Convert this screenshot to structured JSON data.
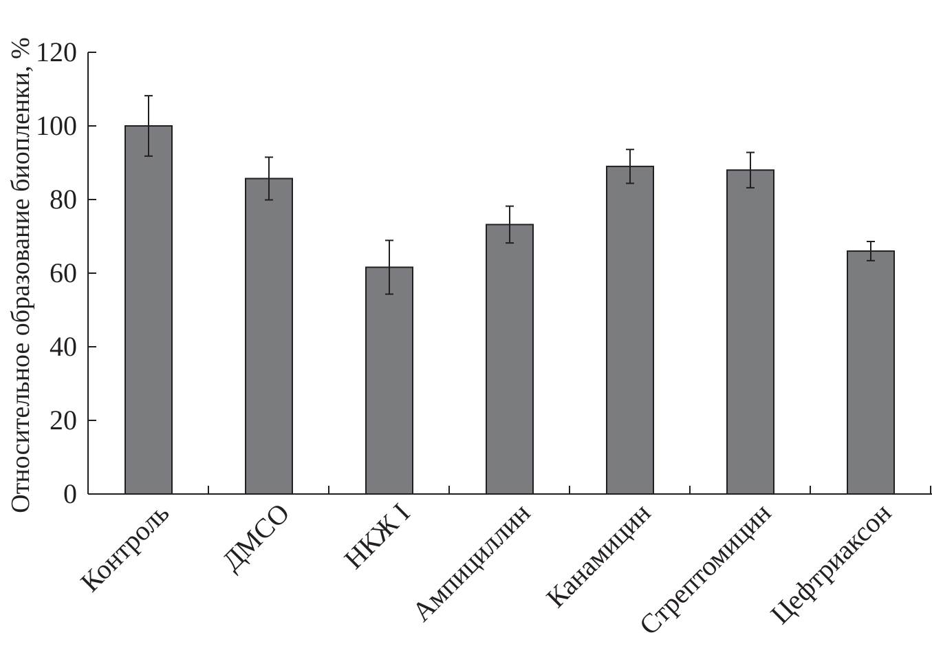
{
  "chart_data": {
    "type": "bar",
    "title": "",
    "xlabel": "",
    "ylabel": "Относительное образование биопленки, %",
    "ylim": [
      0,
      120
    ],
    "yticks": [
      0,
      20,
      40,
      60,
      80,
      100,
      120
    ],
    "grid": false,
    "categories": [
      "Контроль",
      "ДМСО",
      "НКЖ I",
      "Ампициллин",
      "Канамицин",
      "Стрептомицин",
      "Цефтриаксон"
    ],
    "values": [
      100,
      85.7,
      61.6,
      73.2,
      89.0,
      88.0,
      66.0
    ],
    "errors": [
      8.2,
      5.8,
      7.3,
      5.0,
      4.6,
      4.8,
      2.6
    ],
    "bar_color": "#7b7c80",
    "error_bars": true
  }
}
